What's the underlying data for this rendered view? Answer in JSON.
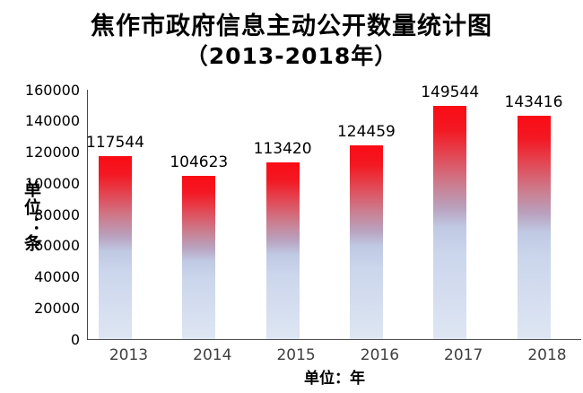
{
  "chart_data": {
    "type": "bar",
    "title": "焦作市政府信息主动公开数量统计图",
    "subtitle": "（2013-2018年）",
    "categories": [
      "2013",
      "2014",
      "2015",
      "2016",
      "2017",
      "2018"
    ],
    "values": [
      117544,
      104623,
      113420,
      124459,
      149544,
      143416
    ],
    "value_labels": [
      "117544",
      "104623",
      "113420",
      "124459",
      "149544",
      "143416"
    ],
    "xlabel": "单位：年",
    "ylabel": "单位：条",
    "ylim": [
      0,
      160000
    ],
    "ytick_interval": 20000,
    "ytick_labels": [
      "0",
      "20000",
      "40000",
      "60000",
      "80000",
      "100000",
      "120000",
      "140000",
      "160000"
    ],
    "grid": false,
    "legend_position": "none",
    "colors": {
      "background": "#ffffff",
      "title_text": "#000000",
      "axis_line": "#4a4a4a",
      "tick_text": "#000000",
      "category_text": "#3f3f3f",
      "bar_gradient": [
        "#fa0c15 0%",
        "#f31822 10%",
        "#e14b58 22%",
        "#cb7e90 34%",
        "#b9a2bf 44%",
        "#c0c9e3 52%",
        "#ccd6ec 64%",
        "#dee6f3 100%"
      ]
    }
  }
}
